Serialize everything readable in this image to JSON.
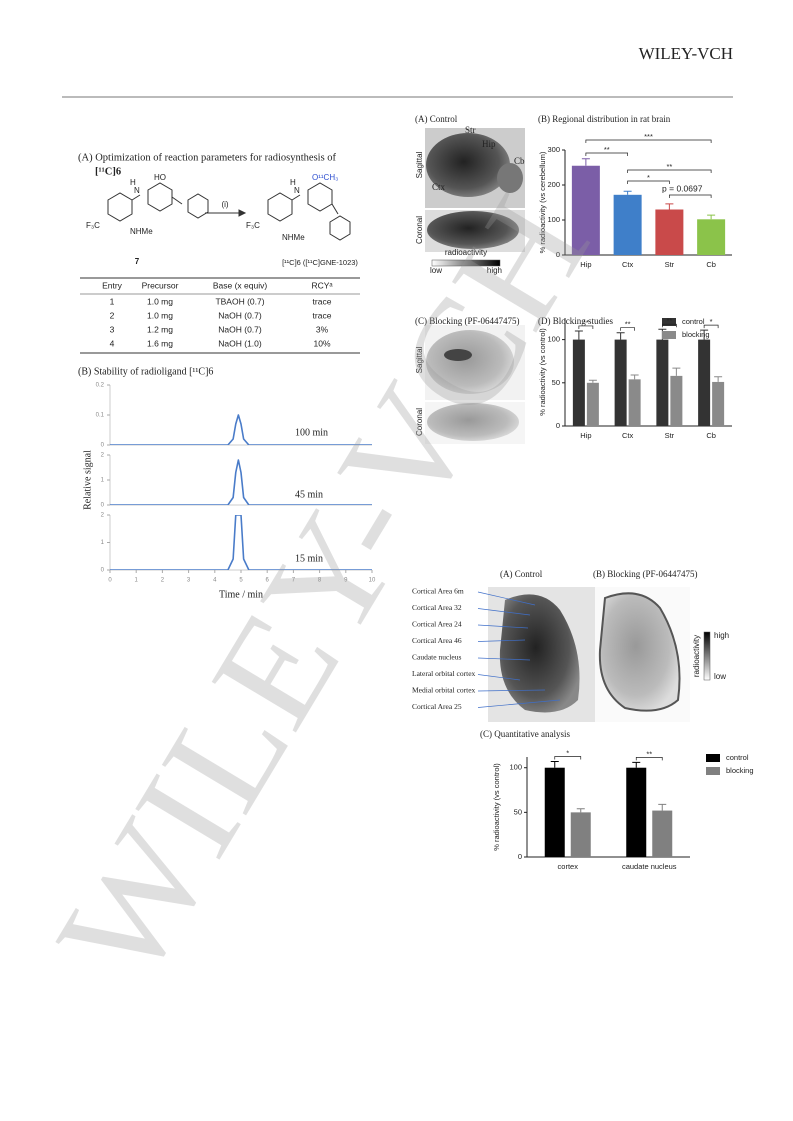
{
  "header": {
    "publisher": "WILEY-VCH"
  },
  "watermark": "WILEY-VCH",
  "scheme": {
    "title_lines": [
      "(A) Optimization of reaction parameters for radiosynthesis of",
      "[¹¹C]6"
    ],
    "reactant": {
      "hydroxyl": "HO",
      "amine": "N",
      "amine_h": "H",
      "cf3": "F₃C",
      "nhme": "NHMe",
      "label": "7"
    },
    "condition": "(i)",
    "product": {
      "methoxy": "O¹¹CH₃",
      "amine": "N",
      "amine_h": "H",
      "cf3": "F₃C",
      "nhme": "NHMe",
      "label": "[¹¹C]6 ([¹¹C]GNE-1023)"
    }
  },
  "table": {
    "columns": [
      "Entry",
      "Precursor",
      "Base (x equiv)",
      "RCYᵃ"
    ],
    "rows": [
      [
        "1",
        "1.0 mg",
        "TBAOH (0.7)",
        "trace"
      ],
      [
        "2",
        "1.0 mg",
        "NaOH (0.7)",
        "trace"
      ],
      [
        "3",
        "1.2 mg",
        "NaOH (0.7)",
        "3%"
      ],
      [
        "4",
        "1.6 mg",
        "NaOH (1.0)",
        "10%"
      ]
    ]
  },
  "rat_images": {
    "control_title": "(A) Control",
    "blocking_title": "(C) Blocking (PF-06447475)",
    "regions": [
      "Str",
      "Hip",
      "Cb",
      "Ctx"
    ],
    "views": [
      "Sagittal",
      "Coronal"
    ],
    "colorbar": {
      "label": "radioactivity",
      "low": "low",
      "high": "high"
    }
  },
  "primate_images": {
    "control_title": "(A) Control",
    "blocking_title": "(B) Blocking (PF-06447475)",
    "regions": [
      "Cortical Area 6m",
      "Cortical Area 32",
      "Cortical Area 24",
      "Cortical Area 46",
      "Caudate nucleus",
      "Lateral orbital cortex",
      "Medial orbital cortex",
      "Cortical Area 25"
    ],
    "colorbar": {
      "label": "radioactivity",
      "high": "high",
      "low": "low"
    }
  },
  "chart_data": [
    {
      "type": "line",
      "title": "(B) Stability of radioligand [¹¹C]6",
      "xlabel": "Time / min",
      "ylabel": "Relative signal",
      "x": [
        0,
        4.5,
        4.7,
        4.8,
        4.9,
        5.0,
        5.1,
        5.3,
        10
      ],
      "xlim": [
        0,
        10
      ],
      "xticks": [
        0,
        1,
        2,
        3,
        4,
        5,
        6,
        7,
        8,
        9,
        10
      ],
      "color": "#4a7cc9",
      "series": [
        {
          "name": "100 min",
          "values": [
            0,
            0,
            0.02,
            0.07,
            0.1,
            0.07,
            0.02,
            0,
            0
          ],
          "ylim": [
            0,
            0.2
          ],
          "yticks": [
            0,
            0.1,
            0.2
          ]
        },
        {
          "name": "45 min",
          "values": [
            0,
            0,
            0.3,
            1.3,
            1.8,
            1.3,
            0.3,
            0,
            0
          ],
          "ylim": [
            0,
            2
          ],
          "yticks": [
            0,
            1,
            2
          ]
        },
        {
          "name": "15 min",
          "values": [
            0,
            0,
            0.4,
            2,
            2,
            2,
            0.4,
            0,
            0
          ],
          "ylim": [
            0,
            2
          ],
          "yticks": [
            0,
            1,
            2
          ]
        }
      ]
    },
    {
      "type": "bar",
      "title": "(B) Regional distribution in rat brain",
      "ylabel": "% radioactivity (vs cerebellum)",
      "categories": [
        "Hip",
        "Ctx",
        "Str",
        "Cb"
      ],
      "ylim": [
        0,
        300
      ],
      "yticks": [
        0,
        100,
        200,
        300
      ],
      "series": [
        {
          "name": "uptake",
          "colors": [
            "#7b5ea7",
            "#3f7fc9",
            "#c94a4a",
            "#8bc34a"
          ],
          "values": [
            255,
            172,
            130,
            102
          ],
          "errors": [
            20,
            10,
            16,
            12
          ]
        }
      ],
      "annotations": [
        "**",
        "***",
        "**",
        "*",
        "p = 0.0697"
      ]
    },
    {
      "type": "bar",
      "title": "(D) Blocking studies",
      "ylabel": "% radioactivity (vs control)",
      "categories": [
        "Hip",
        "Ctx",
        "Str",
        "Cb"
      ],
      "ylim": [
        0,
        125
      ],
      "yticks": [
        0,
        50,
        100
      ],
      "series": [
        {
          "name": "control",
          "color": "#333333",
          "values": [
            100,
            100,
            100,
            100
          ],
          "errors": [
            10,
            8,
            12,
            11
          ]
        },
        {
          "name": "blocking",
          "color": "#8a8a8a",
          "values": [
            50,
            54,
            58,
            51
          ],
          "errors": [
            3,
            5,
            9,
            6
          ]
        }
      ],
      "annotations": [
        "**",
        "**",
        "**",
        "*"
      ]
    },
    {
      "type": "bar",
      "title": "(C) Quantitative analysis",
      "ylabel": "% radioactivity (vs control)",
      "categories": [
        "cortex",
        "caudate nucleus"
      ],
      "ylim": [
        0,
        112
      ],
      "yticks": [
        0,
        50,
        100
      ],
      "series": [
        {
          "name": "control",
          "color": "#000000",
          "values": [
            100,
            100
          ],
          "errors": [
            7,
            6
          ]
        },
        {
          "name": "blocking",
          "color": "#808080",
          "values": [
            50,
            52
          ],
          "errors": [
            4,
            7
          ]
        }
      ],
      "annotations": [
        "*",
        "**"
      ]
    }
  ]
}
